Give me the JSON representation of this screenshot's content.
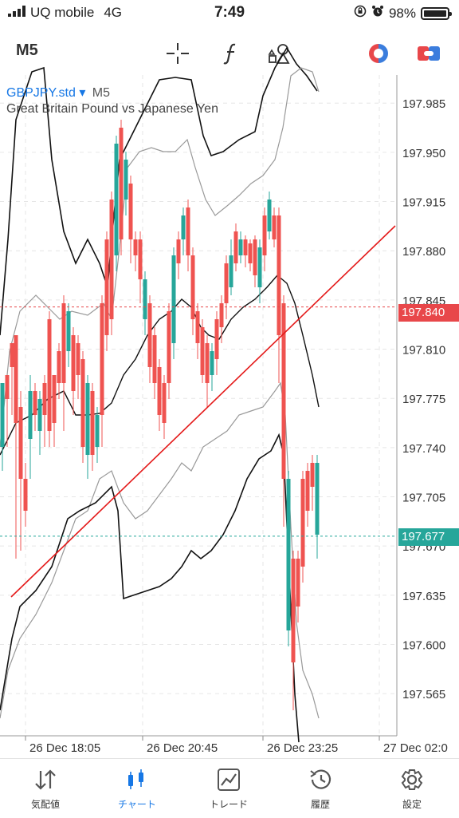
{
  "status_bar": {
    "carrier": "UQ mobile",
    "network": "4G",
    "time": "7:49",
    "battery": "98%"
  },
  "toolbar": {
    "timeframe": "M5",
    "icons": [
      "crosshair-icon",
      "function-icon",
      "objects-icon",
      "indicator-colors-icon",
      "trade-toggle-icon"
    ]
  },
  "chart_header": {
    "symbol": "GBPJPY.std",
    "dropdown": "▾",
    "timeframe": "M5",
    "description": "Great Britain Pound vs Japanese Yen"
  },
  "chart_data": {
    "type": "candlestick",
    "y_ticks": [
      "197.985",
      "197.950",
      "197.915",
      "197.880",
      "197.845",
      "197.810",
      "197.775",
      "197.740",
      "197.705",
      "197.670",
      "197.635",
      "197.600",
      "197.565"
    ],
    "x_ticks": [
      "26 Dec 18:05",
      "26 Dec 20:45",
      "26 Dec 23:25",
      "27 Dec 02:0"
    ],
    "ylim": [
      197.535,
      198.005
    ],
    "bid_line": {
      "label": "197.840",
      "value": 197.84,
      "color": "#e8474a"
    },
    "last_line": {
      "label": "197.677",
      "value": 197.677,
      "color": "#26a69a"
    },
    "trend_line": {
      "from": [
        0,
        197.645
      ],
      "to": [
        82,
        197.9
      ],
      "color": "#e41a1a"
    },
    "colors": {
      "up": "#26a69a",
      "down": "#ef5350",
      "outer_band": "#111111",
      "inner_band": "#999999",
      "grid": "#e6e6e6"
    }
  },
  "tabbar": {
    "tabs": [
      {
        "label": "気配値",
        "icon": "quotes-icon"
      },
      {
        "label": "チャート",
        "icon": "chart-icon",
        "active": true
      },
      {
        "label": "トレード",
        "icon": "trade-icon"
      },
      {
        "label": "履歴",
        "icon": "history-icon"
      },
      {
        "label": "設定",
        "icon": "settings-icon"
      }
    ]
  }
}
